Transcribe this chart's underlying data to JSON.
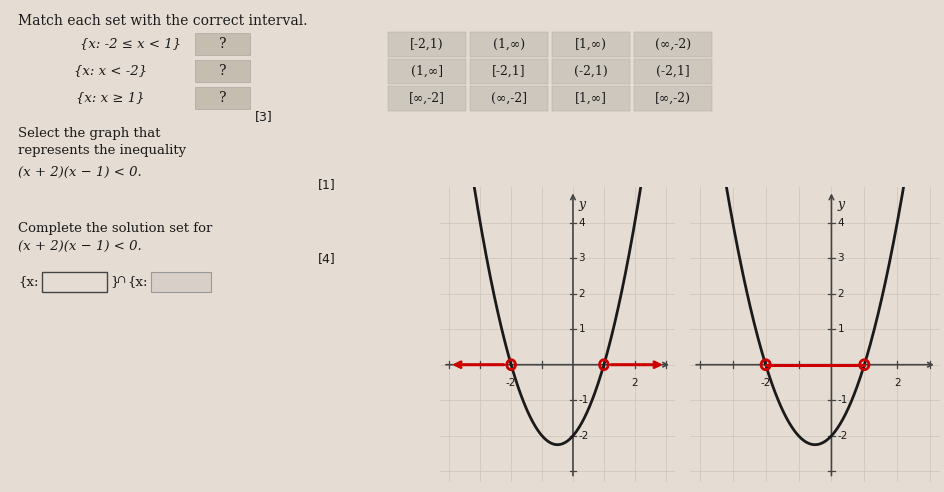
{
  "bg_color": "#e5ddd3",
  "title_text": "Match each set with the correct interval.",
  "sets": [
    "{x: -2 ≤ x < 1}",
    "{x: x < -2}",
    "{x: x ≥ 1}"
  ],
  "marks_label": "[3]",
  "interval_grid": [
    [
      "[-2,1)",
      "(1,∞)",
      "[1,∞)",
      "(∞,-2)"
    ],
    [
      "(1,∞]",
      "[-2,1]",
      "(-2,1)",
      "(-2,1]"
    ],
    [
      "[∞,-2]",
      "(∞,-2]",
      "[1,∞]",
      "[∞,-2)"
    ]
  ],
  "select_graph_text1": "Select the graph that",
  "select_graph_text2": "represents the inequality",
  "inequality_text": "(x + 2)(x − 1) < 0.",
  "select_marks": "[1]",
  "complete_text1": "Complete the solution set for",
  "complete_text2": "(x + 2)(x − 1) < 0.",
  "complete_marks": "[4]",
  "parabola_color": "#1a1a1a",
  "arrow_color": "#cc0000",
  "circle_color": "#cc0000",
  "grid_color": "#ccc4b8",
  "axis_color": "#444444",
  "text_color": "#1a1a1a",
  "box_color": "#c5bdb0",
  "cell_color": "#cec7be"
}
